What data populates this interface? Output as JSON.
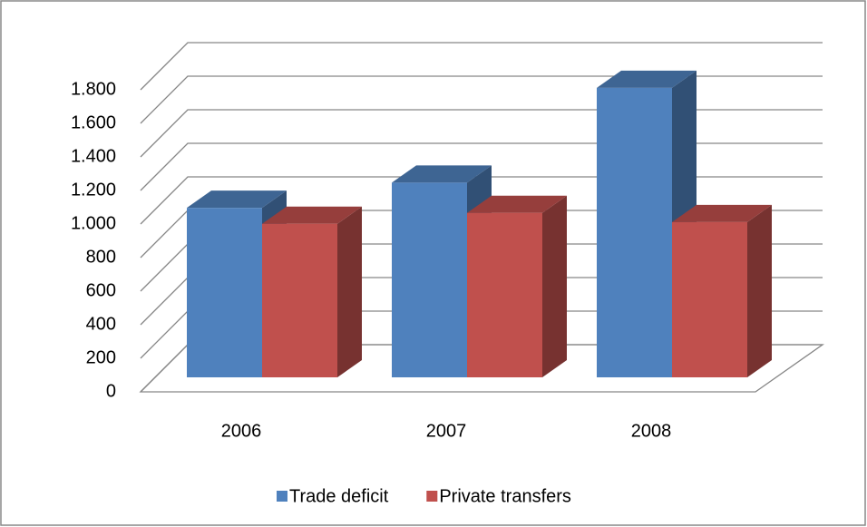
{
  "chart_data": {
    "type": "bar3d",
    "categories": [
      "2006",
      "2007",
      "2008"
    ],
    "series": [
      {
        "name": "Trade deficit",
        "color": "#4f81bd",
        "values": [
          1010,
          1160,
          1725
        ]
      },
      {
        "name": "Private transfers",
        "color": "#c0504d",
        "values": [
          915,
          980,
          925
        ]
      }
    ],
    "ylim": [
      0,
      1800
    ],
    "yticks": [
      0,
      200,
      400,
      600,
      800,
      {
        "value": 1000,
        "label": "1.000"
      },
      {
        "value": 1200,
        "label": "1.200"
      },
      {
        "value": 1400,
        "label": "1.400"
      },
      {
        "value": 1600,
        "label": "1.600"
      },
      {
        "value": 1800,
        "label": "1.800"
      }
    ],
    "grid": true,
    "legend": "bottom"
  }
}
